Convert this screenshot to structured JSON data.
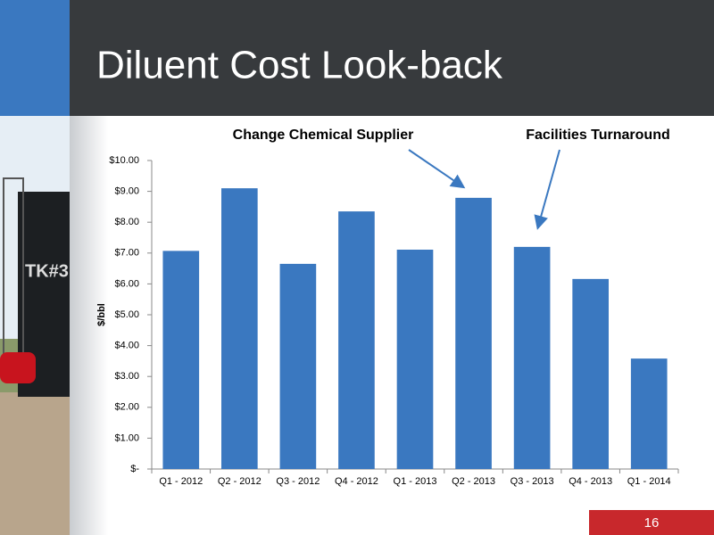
{
  "page_number": "16",
  "chart_data": {
    "type": "bar",
    "title": "Diluent Cost Look-back",
    "y_label": "$/bbl",
    "annotations": [
      "Change Chemical Supplier",
      "Facilities Turnaround"
    ],
    "categories": [
      "Q1 - 2012",
      "Q2 - 2012",
      "Q3 - 2012",
      "Q4 - 2012",
      "Q1 - 2013",
      "Q2 - 2013",
      "Q3 - 2013",
      "Q4 - 2013",
      "Q1 - 2014"
    ],
    "values": [
      7.07,
      9.1,
      6.65,
      8.35,
      7.11,
      8.79,
      7.2,
      6.16,
      3.58
    ],
    "color": "#3a78c0",
    "ylim": [
      0,
      10
    ],
    "yticks": [
      {
        "value": 0,
        "label": "$-"
      },
      {
        "value": 1,
        "label": "$1.00"
      },
      {
        "value": 2,
        "label": "$2.00"
      },
      {
        "value": 3,
        "label": "$3.00"
      },
      {
        "value": 4,
        "label": "$4.00"
      },
      {
        "value": 5,
        "label": "$5.00"
      },
      {
        "value": 6,
        "label": "$6.00"
      },
      {
        "value": 7,
        "label": "$7.00"
      },
      {
        "value": 8,
        "label": "$8.00"
      },
      {
        "value": 9,
        "label": "$9.00"
      },
      {
        "value": 10,
        "label": "$10.00"
      }
    ],
    "grid": false
  }
}
